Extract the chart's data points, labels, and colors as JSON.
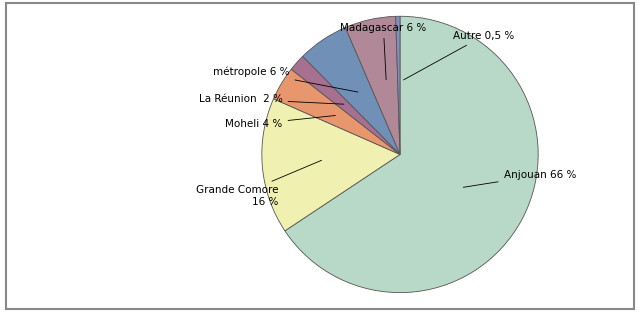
{
  "labels": [
    "Anjouan",
    "Grande Comore",
    "Moheli",
    "La Réunion",
    "métropole",
    "Madagascar",
    "Autre"
  ],
  "values": [
    66,
    16,
    4,
    2,
    6,
    6,
    0.5
  ],
  "slice_colors": [
    "#b8d9c8",
    "#f0f0b0",
    "#e8966e",
    "#a87090",
    "#7090b8",
    "#b08898",
    "#8090c0"
  ],
  "background_color": "#ffffff",
  "edge_color": "#555555",
  "startangle": 90
}
